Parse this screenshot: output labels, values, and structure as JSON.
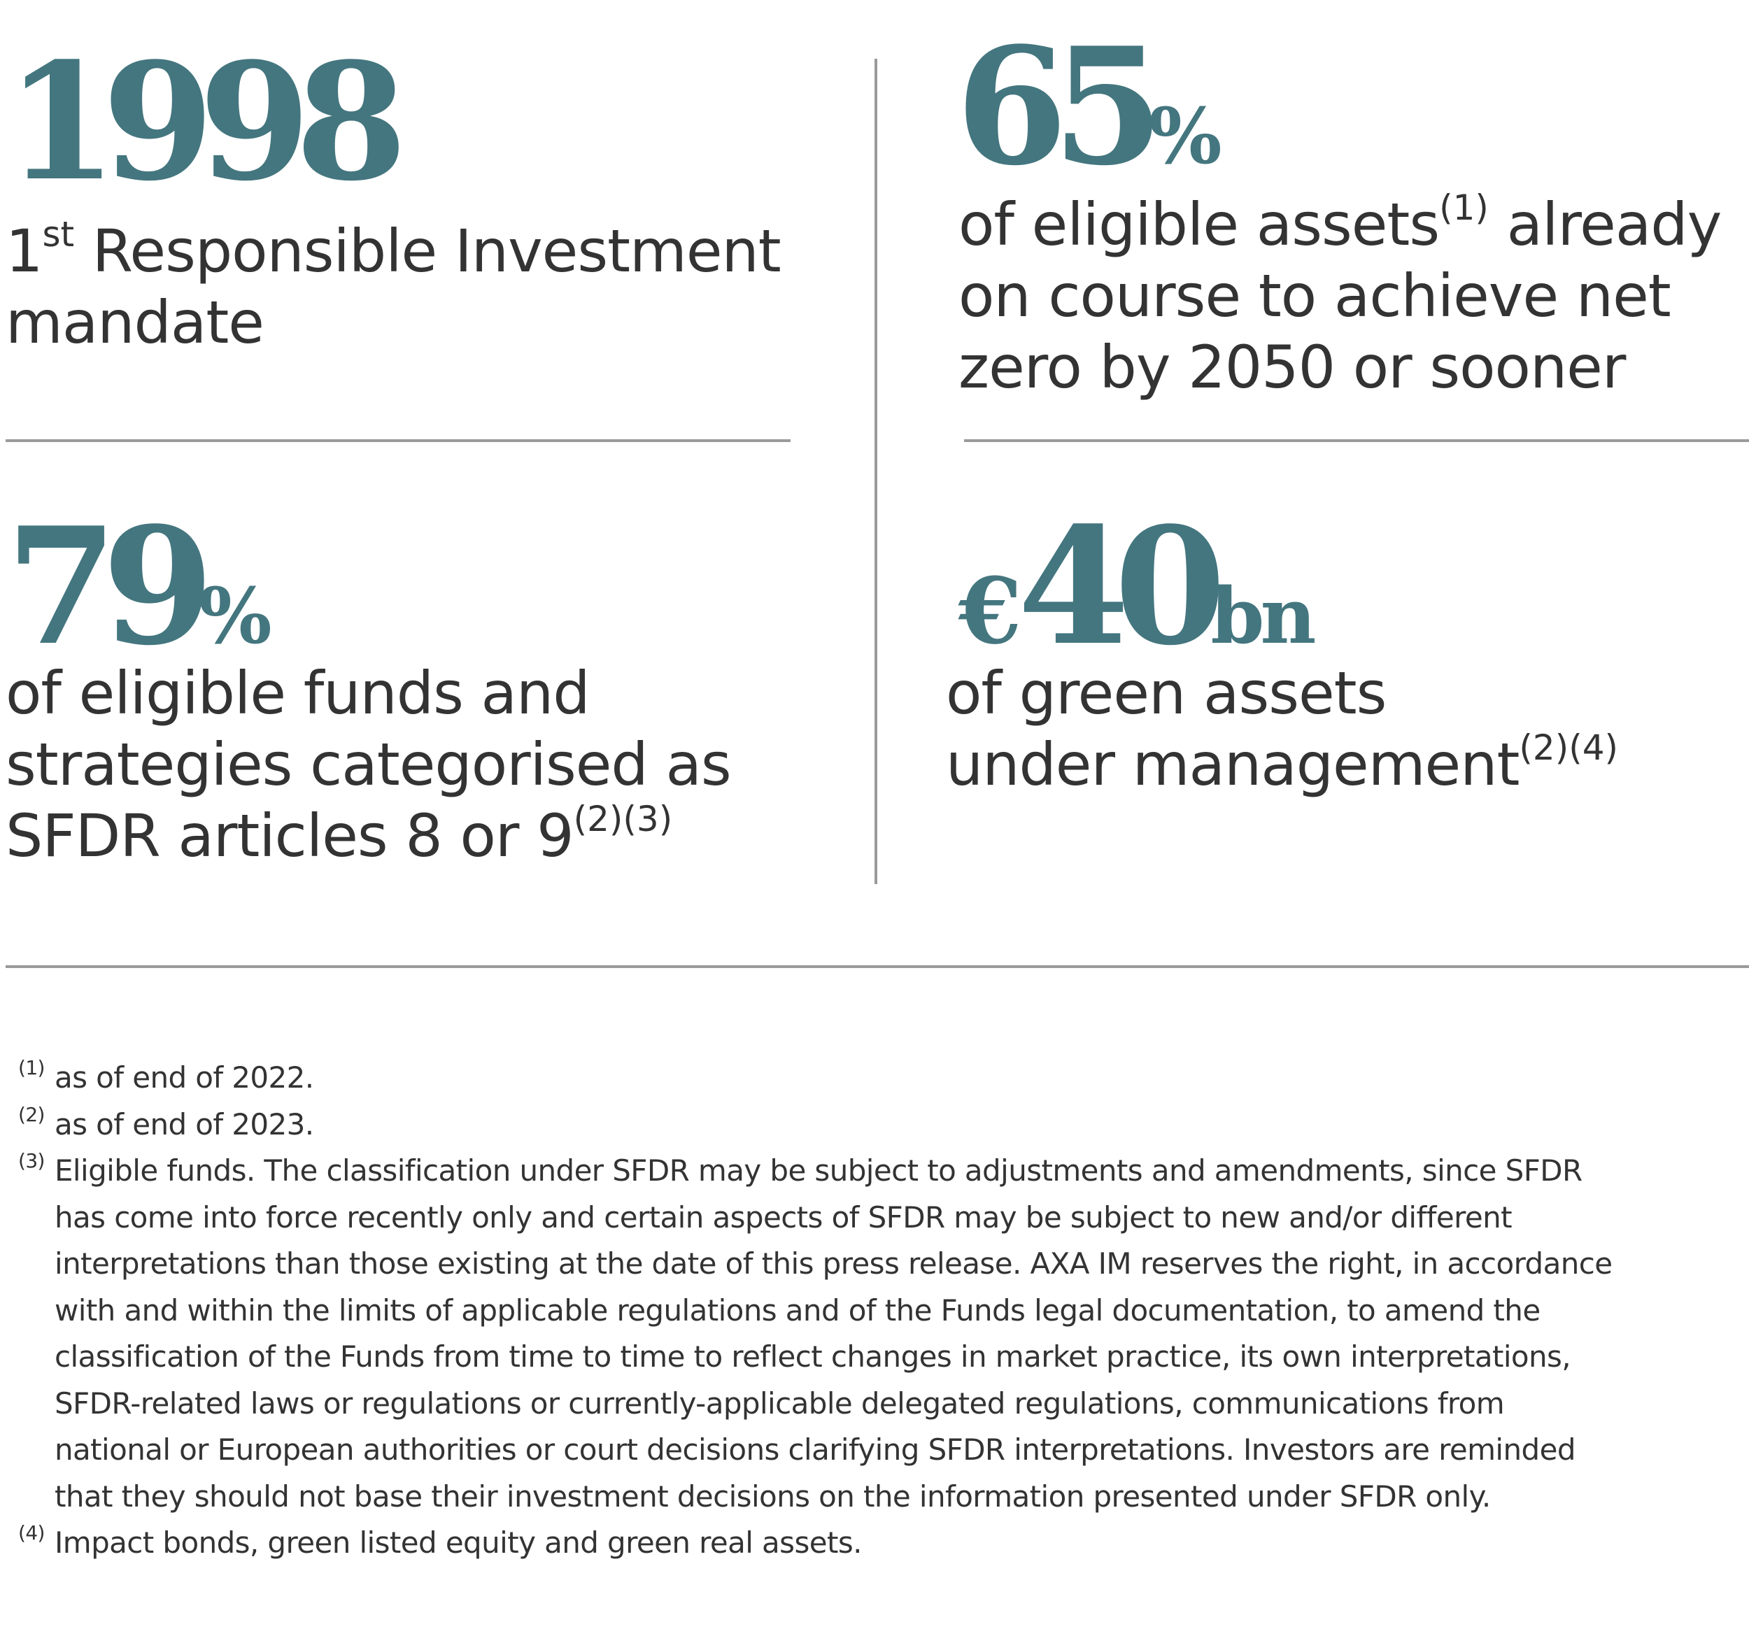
{
  "stats": {
    "s1998": {
      "figure": "1998",
      "label_sup": "st",
      "label_lines": [
        "1",
        " Responsible Investment",
        "mandate"
      ]
    },
    "s65": {
      "figure": "65",
      "unit": "%",
      "label_lines": [
        "of eligible assets",
        "(1)",
        " already",
        "on course to achieve net",
        "zero by 2050 or sooner"
      ]
    },
    "s79": {
      "figure": "79",
      "unit": "%",
      "label_lines": [
        "of eligible funds and",
        "strategies categorised as",
        "SFDR articles 8 or 9",
        "(2)(3)"
      ]
    },
    "s40": {
      "currency": "€",
      "figure": "40",
      "unit": "bn",
      "label_lines": [
        "of green assets",
        "under management",
        "(2)(4)"
      ]
    }
  },
  "footnotes": [
    {
      "marker": "(1)",
      "lines": [
        "as of end of  2022."
      ]
    },
    {
      "marker": "(2)",
      "lines": [
        "as of end of  2023."
      ]
    },
    {
      "marker": "(3)",
      "lines": [
        "Eligible funds. The classification under SFDR may be subject to adjustments and amendments, since SFDR",
        "has come into force recently only and certain aspects of SFDR may be subject to new and/or different",
        "interpretations than those existing at the date of this press release. AXA IM reserves the right, in accordance",
        "with and within the limits of applicable regulations and of the Funds legal documentation, to amend the",
        "classification of the Funds from time to time to reflect changes in market practice, its own interpretations,",
        "SFDR-related laws or regulations or currently-applicable delegated regulations, communications from",
        "national or European authorities or court decisions clarifying SFDR interpretations. Investors are reminded",
        "that they should not base their investment decisions on the information presented under SFDR only."
      ]
    },
    {
      "marker": "(4)",
      "lines": [
        "Impact bonds, green listed equity and green real assets."
      ]
    }
  ],
  "colors": {
    "accent": "#44767f",
    "text": "#333333",
    "rule": "#9a9a9a"
  }
}
